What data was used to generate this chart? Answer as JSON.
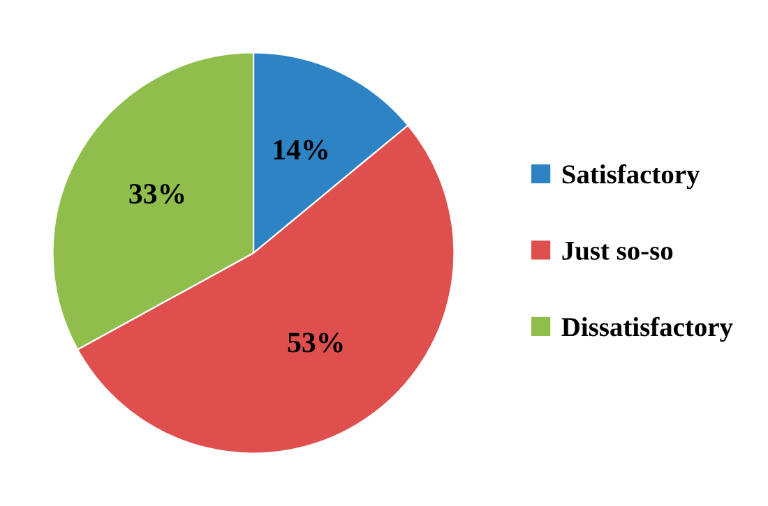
{
  "chart_data": {
    "type": "pie",
    "categories": [
      "Satisfactory",
      "Just so-so",
      "Dissatisfactory"
    ],
    "values": [
      14,
      53,
      33
    ],
    "colors": [
      "#2d83c4",
      "#de4f4d",
      "#8fbe4c"
    ],
    "value_labels": [
      "14%",
      "53%",
      "33%"
    ],
    "legend": "right"
  }
}
